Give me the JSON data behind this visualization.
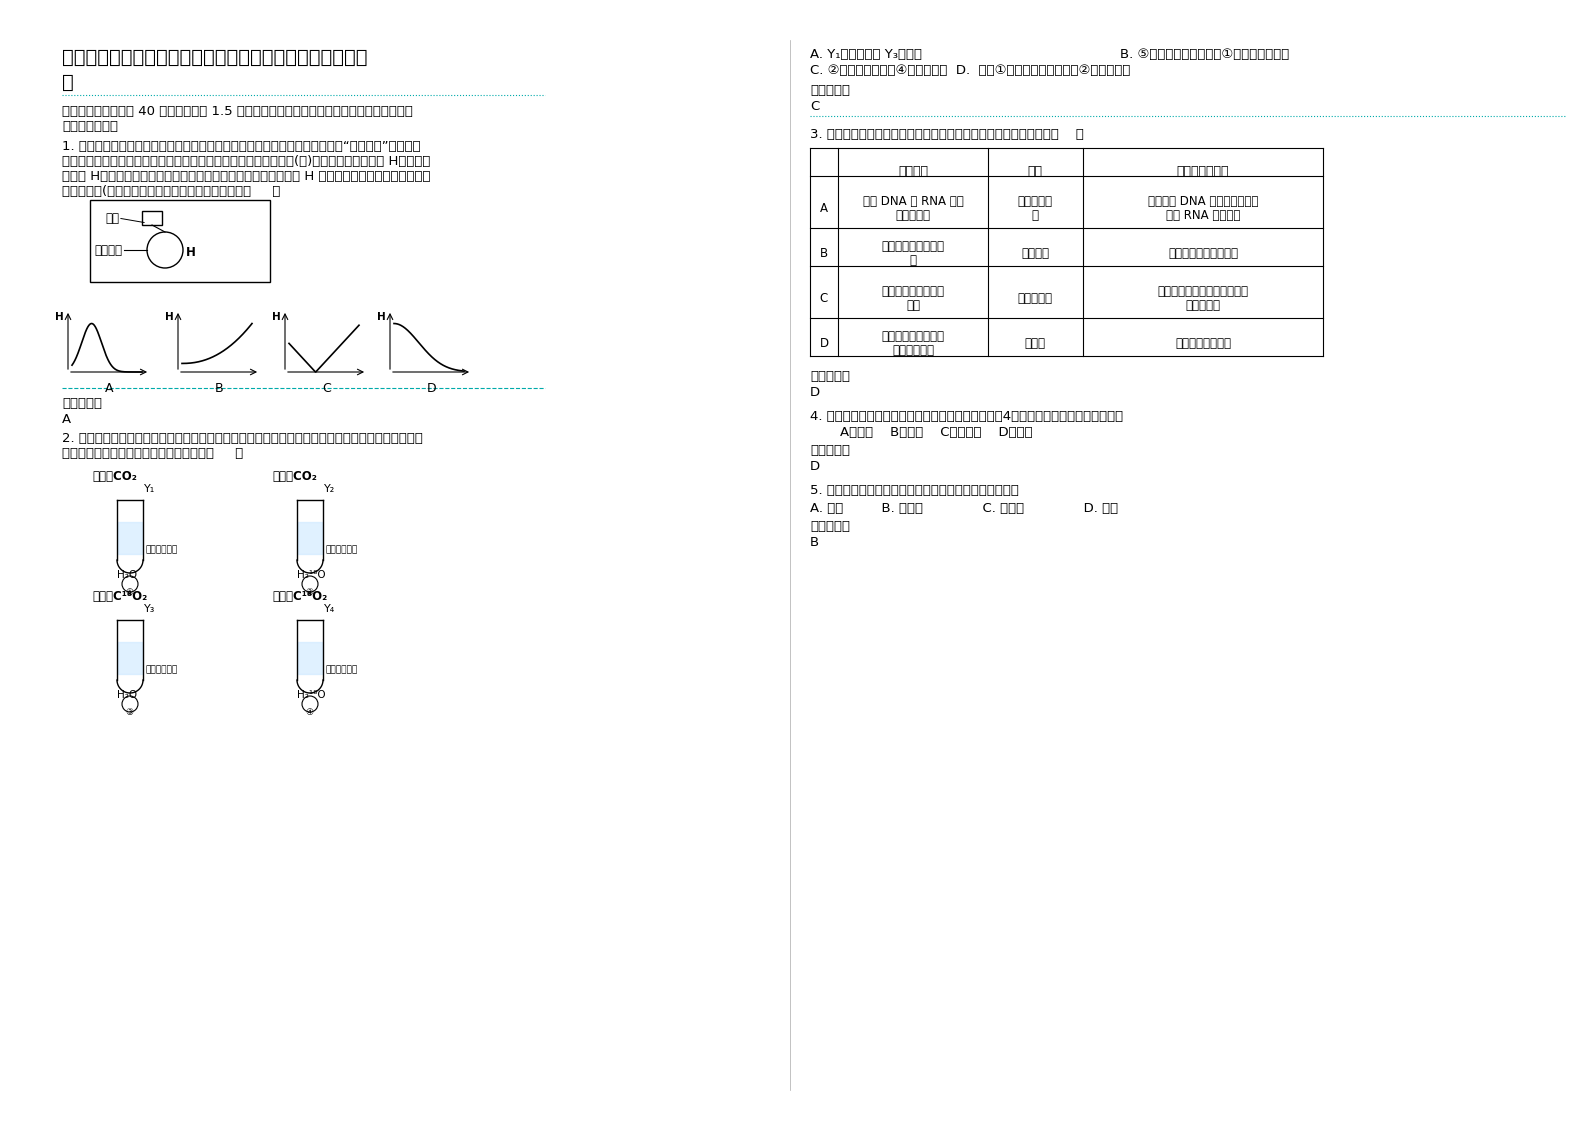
{
  "bg_color": "#ffffff",
  "text_color": "#000000",
  "divider_color": "#00aaaa",
  "title_line1": "河北省邯郸市永年县第一中学高一生物上学期期末试题含解",
  "title_line2": "析",
  "section1_line1": "一、选择题（本题共 40 小题，每小题 1.5 分。在每小题给出的四个选项中，只有一项是符合",
  "section1_line2": "题目要求的。）",
  "q1_line1": "1. 若将高浓度的麦芽糖溶液装入一个人工半透膜制成的小袋中，就制成了一个“人造细胞”，如图所",
  "q1_line2": "示把它沉在装有低浓度麦芽糖溶液的容器底部，其上放一适当重量(碇)的砝码，细胞高度为 H。如果砝",
  "q1_line3": "码重量 H不变，当逐步增大容器中麦芽糖溶液的浓度时，细胞高度 H 与容器中麦芽糖溶液浓度之间的",
  "q1_line4": "关系可能是(注：横坐标为容器中麦芽糖溶液浓度）（     ）",
  "ans1_label": "参考答案：",
  "ans1": "A",
  "q2_line1": "2. 下图表示较强光照且温度相同以及水和小球藻的质量相等的条件下，小球藻进行光合作用的实验示",
  "q2_line2": "意图。一段时间后，以下说法不正确的是（     ）",
  "q2_gas1": "足量的CO₂",
  "q2_gas2": "足量的CO₂",
  "q2_gas3": "足量的C¹⁸O₂",
  "q2_gas4": "足量的C¹⁸O₂",
  "q2_y1": "Y₁",
  "q2_y2": "Y₂",
  "q2_y3": "Y₃",
  "q2_y4": "Y₄",
  "q2_h2o": "H₂O",
  "q2_h218o": "H₂¹⁸O",
  "q2_algae": "小球藻悬浮液",
  "ans2_label": "参考答案：",
  "ans2": "C",
  "rhs_optA": "A. Y₁的质量大于 Y₃的质量",
  "rhs_optB": "B. ⑤中小球藻的质量大于①中小球藻的质量",
  "rhs_optCD": "C. ②中水的质量大于④中水的质量  D.  试管①水的的质量大于试管②水的的质量",
  "q3_text": "3. 下表是根据实验目的，所选用的试剂与预期的实验结果正确的是（    ）",
  "table_h0": "",
  "table_h1": "实验目的",
  "table_h2": "试剂",
  "table_h3": "预期的实验结果",
  "table_rA0": "A",
  "table_rA1a": "观察 DNA 和 RNA 在细",
  "table_rA1b": "胞中的分布",
  "table_rA2a": "健那绿吡罗",
  "table_rA2b": "红",
  "table_rA3a": "健那绿将 DNA 染成绿色，吡罗",
  "table_rA3b": "红将 RNA 染成红色",
  "table_rB0": "B",
  "table_rB1a": "检测植物组织中的脂",
  "table_rB1b": "肪",
  "table_rB2": "酮酸洋红",
  "table_rB3": "脂肪颗粒被染成紫红色",
  "table_rC0": "C",
  "table_rC1a": "检测植物组织中的葡",
  "table_rC1b": "萄糖",
  "table_rC2": "双缩脲试剂",
  "table_rC3a": "葡萄糖与双缩脲试剂作用，生",
  "table_rC3b": "成红色沉淀",
  "table_rD0": "D",
  "table_rD1a": "观察根尖分生组织细",
  "table_rD1b": "胞的有丝分裂",
  "table_rD2": "龙胆紫",
  "table_rD3": "染色体被染成紫色",
  "ans3_label": "参考答案：",
  "ans3": "D",
  "q4_text": "4. 人在不同生长发育期，其体内含水量也不同。以下4个时期中，含水量最多的是（）",
  "q4_opts": "A、老年    B、中年    C、青少年    D、幼儿",
  "ans4_label": "参考答案：",
  "ans4": "D",
  "q5_text": "5. 淀粉是生物体内一种储能物质，构成淀粉的基本单位是",
  "q5_opts": "A. 蔗糖         B. 葡萄糖              C. 麦芽糖              D. 核糖",
  "ans5_label": "参考答案：",
  "ans5": "B"
}
